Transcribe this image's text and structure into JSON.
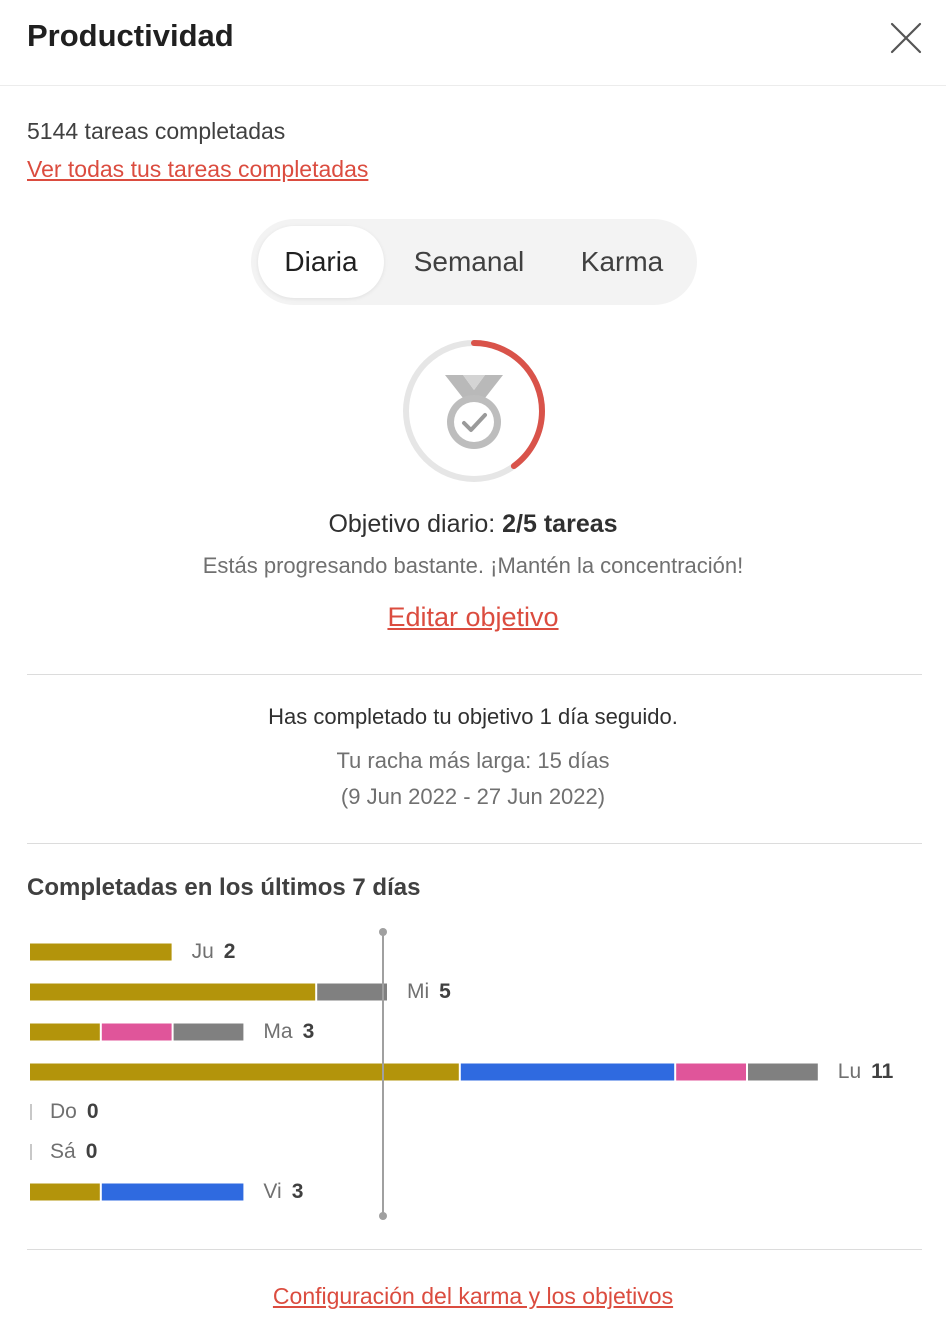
{
  "header": {
    "title": "Productividad"
  },
  "summary": {
    "completed_count": "5144 tareas completadas",
    "view_all_link": "Ver todas tus tareas completadas"
  },
  "tabs": [
    {
      "label": "Diaria",
      "active": true
    },
    {
      "label": "Semanal",
      "active": false
    },
    {
      "label": "Karma",
      "active": false
    }
  ],
  "goal": {
    "prefix": "Objetivo diario:",
    "value": "2/5 tareas",
    "progress": 0.4,
    "message": "Estás progresando bastante. ¡Mantén la concentración!",
    "edit_link": "Editar objetivo"
  },
  "streak": {
    "current": "Has completado tu objetivo 1 día seguido.",
    "longest": "Tu racha más larga: 15 días",
    "range": "(9 Jun 2022 - 27 Jun 2022)"
  },
  "colors": {
    "accent": "#db4c3f",
    "olive": "#b3940b",
    "gray": "#808080",
    "pink": "#e0559a",
    "blue": "#2f6ae0"
  },
  "chart_data": {
    "type": "bar",
    "title": "Completadas en los últimos 7 días",
    "goal_line": 5,
    "categories": [
      "Ju",
      "Mi",
      "Ma",
      "Lu",
      "Do",
      "Sá",
      "Vi"
    ],
    "totals": [
      2,
      5,
      3,
      11,
      0,
      0,
      3
    ],
    "bars": [
      {
        "day": "Ju",
        "total": 2,
        "segments": [
          {
            "color": "#b3940b",
            "value": 2
          }
        ]
      },
      {
        "day": "Mi",
        "total": 5,
        "segments": [
          {
            "color": "#b3940b",
            "value": 4
          },
          {
            "color": "#808080",
            "value": 1
          }
        ]
      },
      {
        "day": "Ma",
        "total": 3,
        "segments": [
          {
            "color": "#b3940b",
            "value": 1
          },
          {
            "color": "#e0559a",
            "value": 1
          },
          {
            "color": "#808080",
            "value": 1
          }
        ]
      },
      {
        "day": "Lu",
        "total": 11,
        "segments": [
          {
            "color": "#b3940b",
            "value": 6
          },
          {
            "color": "#2f6ae0",
            "value": 3
          },
          {
            "color": "#e0559a",
            "value": 1
          },
          {
            "color": "#808080",
            "value": 1
          }
        ]
      },
      {
        "day": "Do",
        "total": 0,
        "segments": []
      },
      {
        "day": "Sá",
        "total": 0,
        "segments": []
      },
      {
        "day": "Vi",
        "total": 3,
        "segments": [
          {
            "color": "#b3940b",
            "value": 1
          },
          {
            "color": "#2f6ae0",
            "value": 2
          }
        ]
      }
    ]
  },
  "footer": {
    "settings_link": "Configuración del karma y los objetivos"
  }
}
